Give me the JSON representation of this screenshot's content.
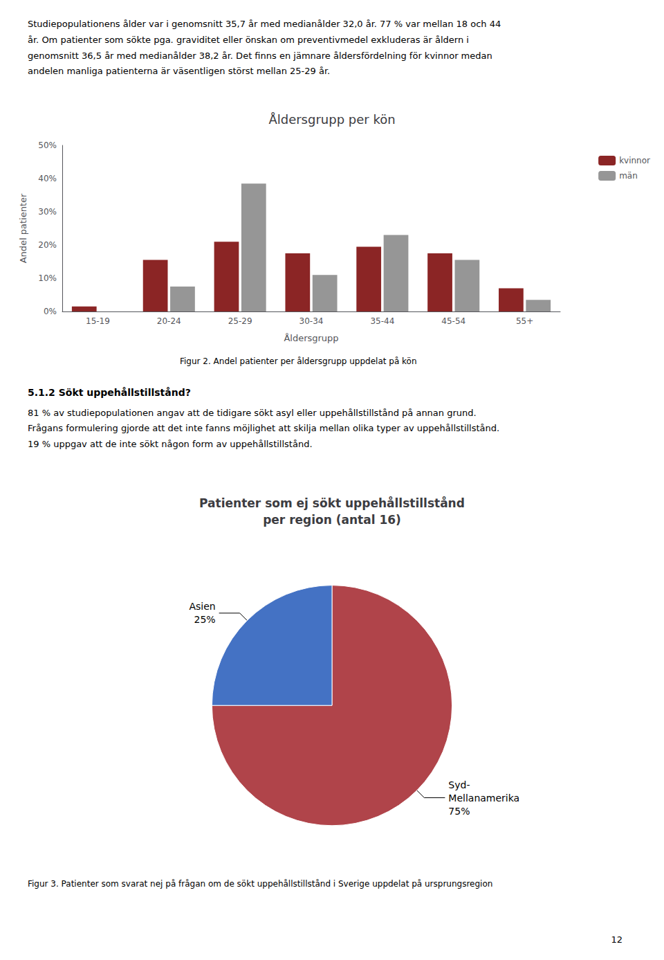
{
  "chart_data": [
    {
      "type": "bar",
      "title": "Åldersgrupp per kön",
      "xlabel": "Åldersgrupp",
      "ylabel": "Andel patienter",
      "categories": [
        "15-19",
        "20-24",
        "25-29",
        "30-34",
        "35-44",
        "45-54",
        "55+"
      ],
      "series": [
        {
          "name": "kvinnor",
          "color": "#8B2525",
          "values": [
            1.5,
            15.5,
            21.0,
            17.5,
            19.5,
            17.5,
            7.0
          ]
        },
        {
          "name": "män",
          "color": "#969696",
          "values": [
            0.0,
            7.5,
            38.5,
            11.0,
            23.0,
            15.5,
            3.5
          ]
        }
      ],
      "ylim": [
        0,
        50
      ],
      "yticks": [
        {
          "value": 0,
          "label": "0%"
        },
        {
          "value": 10,
          "label": "10%"
        },
        {
          "value": 20,
          "label": "20%"
        },
        {
          "value": 30,
          "label": "30%"
        },
        {
          "value": 40,
          "label": "40%"
        },
        {
          "value": 50,
          "label": "50%"
        }
      ],
      "grid": false,
      "legend": "upper right",
      "caption": "Figur 2. Andel patienter per åldersgrupp uppdelat på kön"
    },
    {
      "type": "pie",
      "title": "Patienter som ej sökt uppehållstillstånd\nper region (antal 16)",
      "categories": [
        "Syd-\nMellanamerika",
        "Asien"
      ],
      "values": [
        75,
        25
      ],
      "value_labels": [
        "75%",
        "25%"
      ],
      "colors": [
        "#B0444A",
        "#4472C4"
      ],
      "data_labels": true,
      "caption": "Figur 3. Patienter som svarat nej på frågan om de sökt uppehållstillstånd i Sverige uppdelat på ursprungsregion"
    }
  ],
  "text_blocks": [
    {
      "lines": [
        "Studiepopulationens ålder var i genomsnitt 35,7 år med medianålder 32,0 år. 77 % var mellan 18 och 44",
        "år. Om patienter som sökte pga. graviditet eller önskan om preventivmedel exkluderas är åldern i",
        "genomsnitt 36,5 år med medianålder 38,2 år. Det finns en jämnare åldersfördelning för kvinnor medan",
        "andelen manliga patienterna är väsentligen störst mellan 25-29 år."
      ]
    },
    {
      "heading": "5.1.2 Sökt uppehållstillstånd?",
      "lines": [
        "81 % av studiepopulationen angav att de tidigare sökt asyl eller uppehållstillstånd på annan grund.",
        "Frågans formulering gjorde att det inte fanns möjlighet att skilja mellan olika typer av uppehållstillstånd.",
        "19 % uppgav att de inte sökt någon form av uppehållstillstånd."
      ]
    }
  ],
  "page_number": "12"
}
